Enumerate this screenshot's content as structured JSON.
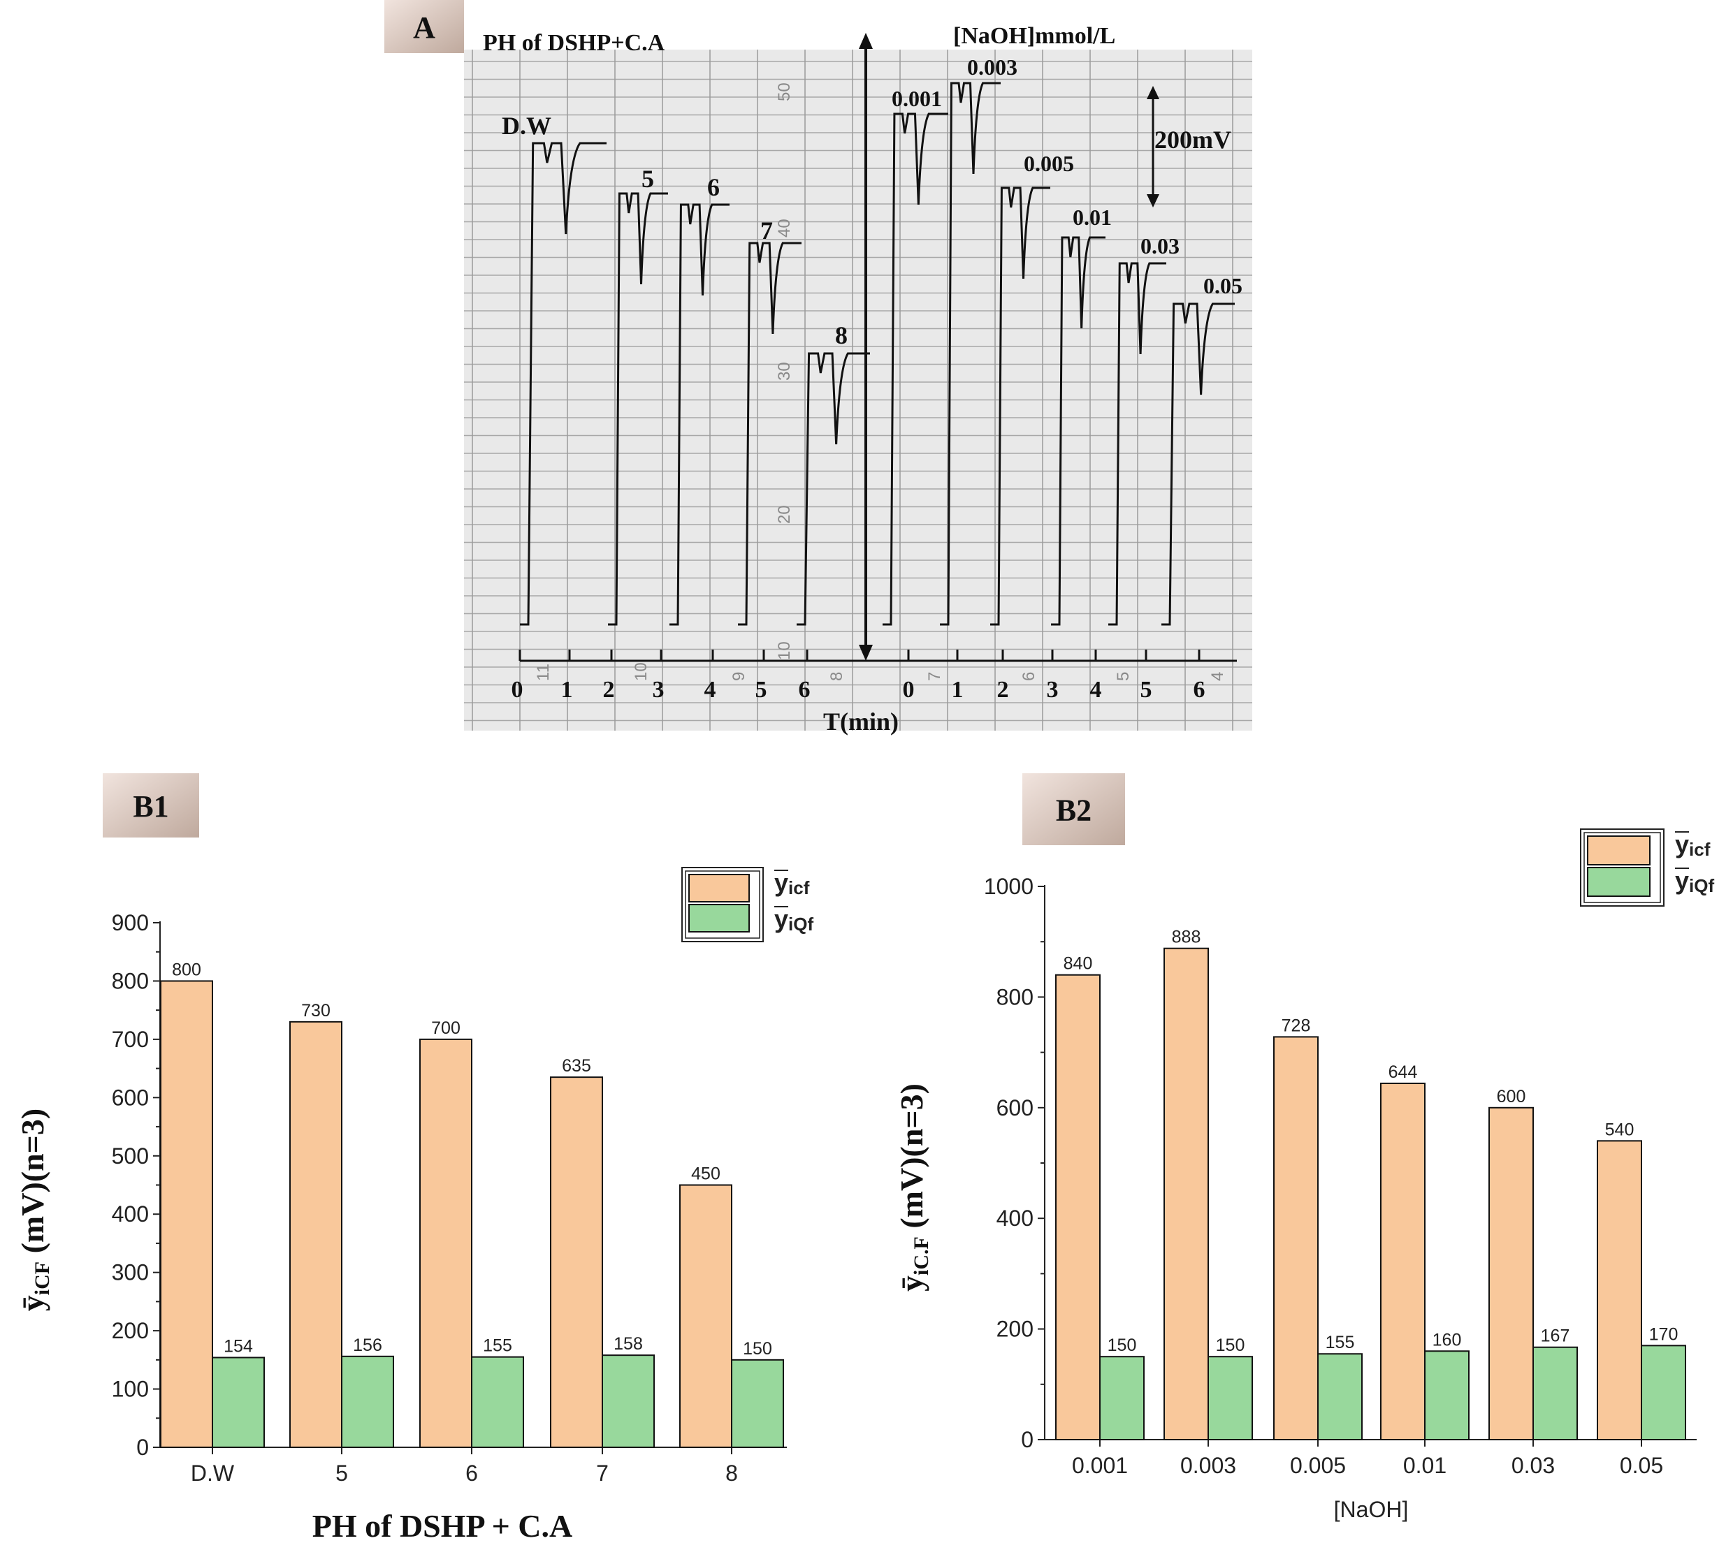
{
  "chart_data": [
    {
      "panel": "A",
      "type": "line",
      "left_title": "PH of DSHP+C.A",
      "right_title": "[NaOH]mmol/L",
      "xlabel": "T(min)",
      "x_ticks_left": [
        "0",
        "1",
        "2",
        "3",
        "4",
        "5",
        "6"
      ],
      "x_ticks_right": [
        "0",
        "1",
        "2",
        "3",
        "4",
        "5",
        "6"
      ],
      "scale_bar_label": "200mV",
      "trace_labels": [
        "D.W",
        "5",
        "6",
        "7",
        "8",
        "0.001",
        "0.003",
        "0.005",
        "0.01",
        "0.03",
        "0.05"
      ],
      "paper_numbers": [
        "50",
        "40",
        "30",
        "20",
        "10"
      ],
      "paper_bottom_numbers": [
        "11",
        "10",
        "9",
        "8",
        "7",
        "6",
        "5",
        "4"
      ]
    },
    {
      "panel": "B1",
      "type": "bar",
      "categories": [
        "D.W",
        "5",
        "6",
        "7",
        "8"
      ],
      "series": [
        {
          "name": "y",
          "sub": "icf",
          "color": "#f9c89b",
          "values": [
            800,
            730,
            700,
            635,
            450
          ]
        },
        {
          "name": "y",
          "sub": "iQf",
          "color": "#98d89c",
          "values": [
            154,
            156,
            155,
            158,
            150
          ]
        }
      ],
      "xlabel": "PH of DSHP + C.A",
      "ylabel": {
        "symbol": "ȳ",
        "sub": "iCF",
        "rest": " (mV)(n=3)"
      },
      "yticks": [
        "0",
        "100",
        "200",
        "300",
        "400",
        "500",
        "600",
        "700",
        "800",
        "900"
      ],
      "ylim": [
        0,
        900
      ],
      "legend": "top-right"
    },
    {
      "panel": "B2",
      "type": "bar",
      "categories": [
        "0.001",
        "0.003",
        "0.005",
        "0.01",
        "0.03",
        "0.05"
      ],
      "series": [
        {
          "name": "y",
          "sub": "icf",
          "color": "#f9c89b",
          "values": [
            840,
            888,
            728,
            644,
            600,
            540
          ]
        },
        {
          "name": "y",
          "sub": "iQf",
          "color": "#98d89c",
          "values": [
            150,
            150,
            155,
            160,
            167,
            170
          ]
        }
      ],
      "xlabel": "[NaOH]",
      "ylabel": {
        "symbol": "ȳ",
        "sub": "iC.F",
        "rest": " (mV)(n=3)"
      },
      "yticks": [
        "0",
        "200",
        "400",
        "600",
        "800",
        "1000"
      ],
      "ylim": [
        0,
        1000
      ],
      "legend": "top-right"
    }
  ]
}
